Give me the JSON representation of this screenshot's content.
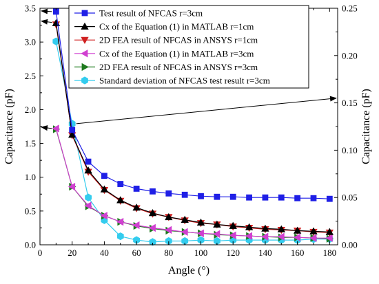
{
  "chart_data": {
    "type": "line",
    "xlabel": "Angle (°)",
    "ylabel_left": "Capacitance (pF)",
    "ylabel_right": "Capacitance (pF)",
    "xlim": [
      0,
      185
    ],
    "ylim_left": [
      0,
      3.5
    ],
    "ylim_right": [
      0,
      0.25
    ],
    "x_ticks": [
      0,
      20,
      40,
      60,
      80,
      100,
      120,
      140,
      160,
      180
    ],
    "y_ticks_left": [
      0.0,
      0.5,
      1.0,
      1.5,
      2.0,
      2.5,
      3.0,
      3.5
    ],
    "y_ticks_right": [
      0.0,
      0.05,
      0.1,
      0.15,
      0.2,
      0.25
    ],
    "x_tick_labels": [
      "0",
      "20",
      "40",
      "60",
      "80",
      "100",
      "120",
      "140",
      "160",
      "180"
    ],
    "y_tick_labels_left": [
      "0.0",
      "0.5",
      "1.0",
      "1.5",
      "2.0",
      "2.5",
      "3.0",
      "3.5"
    ],
    "y_tick_labels_right": [
      "0.00",
      "0.05",
      "0.10",
      "0.15",
      "0.20",
      "0.25"
    ],
    "legend_position": "top-right",
    "x": [
      10,
      20,
      30,
      40,
      50,
      60,
      70,
      80,
      90,
      100,
      110,
      120,
      130,
      140,
      150,
      160,
      170,
      180
    ],
    "series": [
      {
        "name": "Test result of NFCAS r=3cm",
        "axis": "left",
        "color": "#1f1fe6",
        "marker": "square",
        "values": [
          3.45,
          1.7,
          1.23,
          1.02,
          0.9,
          0.83,
          0.79,
          0.76,
          0.74,
          0.72,
          0.71,
          0.71,
          0.7,
          0.7,
          0.7,
          0.69,
          0.69,
          0.68
        ]
      },
      {
        "name": "Cx of the Equation (1) in MATLAB r=1cm",
        "axis": "left",
        "color": "#000000",
        "marker": "triangle-up",
        "values": [
          3.28,
          1.63,
          1.1,
          0.82,
          0.66,
          0.55,
          0.47,
          0.41,
          0.37,
          0.33,
          0.3,
          0.28,
          0.26,
          0.24,
          0.23,
          0.21,
          0.2,
          0.19
        ]
      },
      {
        "name": "2D FEA result of NFCAS in ANSYS r=1cm",
        "axis": "left",
        "color": "#d02020",
        "marker": "triangle-down",
        "values": [
          3.26,
          1.62,
          1.08,
          0.81,
          0.65,
          0.54,
          0.46,
          0.41,
          0.36,
          0.32,
          0.3,
          0.27,
          0.25,
          0.23,
          0.22,
          0.21,
          0.19,
          0.18
        ]
      },
      {
        "name": "Cx of the Equation (1) in MATLAB r=3cm",
        "axis": "left",
        "color": "#d040d0",
        "marker": "triangle-left",
        "values": [
          1.72,
          0.86,
          0.58,
          0.43,
          0.34,
          0.29,
          0.25,
          0.22,
          0.19,
          0.17,
          0.16,
          0.14,
          0.13,
          0.12,
          0.12,
          0.11,
          0.1,
          0.1
        ]
      },
      {
        "name": "2D FEA result of NFCAS in ANSYS r=3cm",
        "axis": "left",
        "color": "#1e7a1e",
        "marker": "triangle-right",
        "values": [
          1.71,
          0.86,
          0.57,
          0.43,
          0.34,
          0.28,
          0.24,
          0.21,
          0.19,
          0.17,
          0.15,
          0.14,
          0.13,
          0.12,
          0.11,
          0.11,
          0.1,
          0.09
        ]
      },
      {
        "name": "Standard deviation of  NFCAS test result r=3cm",
        "axis": "right",
        "color": "#33ccee",
        "marker": "hexagon",
        "values": [
          0.215,
          0.128,
          0.05,
          0.026,
          0.009,
          0.005,
          0.003,
          0.004,
          0.004,
          0.005,
          0.004,
          0.005,
          0.005,
          0.005,
          0.005,
          0.005,
          0.006,
          0.006
        ]
      }
    ]
  }
}
